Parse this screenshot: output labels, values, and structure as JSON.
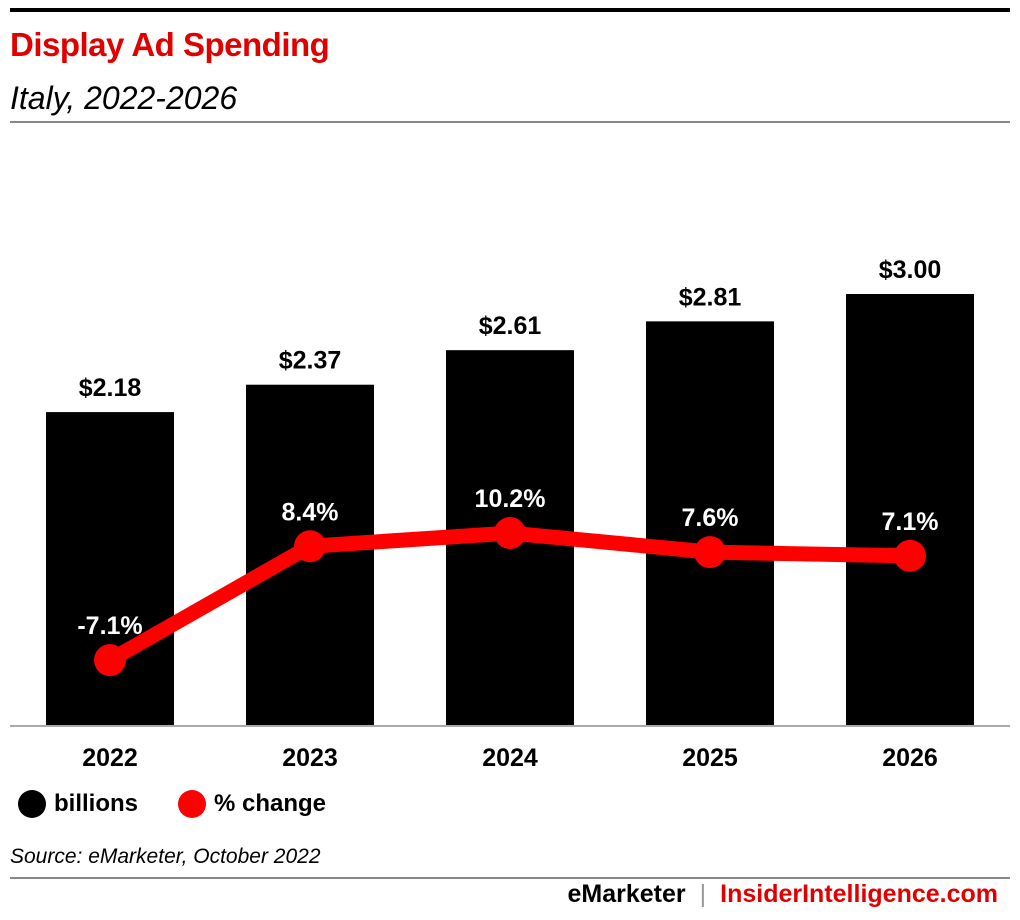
{
  "header": {
    "title": "Display Ad Spending",
    "subtitle": "Italy, 2022-2026"
  },
  "legend": {
    "bars_label": "billions",
    "line_label": "% change"
  },
  "source": "Source: eMarketer, October 2022",
  "footer": {
    "brand_left": "eMarketer",
    "separator": "|",
    "brand_right": "InsiderIntelligence.com"
  },
  "colors": {
    "title": "#e00000",
    "bars": "#000000",
    "line": "#ff0000",
    "footer_right": "#e00000"
  },
  "chart_data": {
    "type": "bar",
    "categories": [
      "2022",
      "2023",
      "2024",
      "2025",
      "2026"
    ],
    "series": [
      {
        "name": "billions",
        "values": [
          2.18,
          2.37,
          2.61,
          2.81,
          3.0
        ],
        "labels": [
          "$2.18",
          "$2.37",
          "$2.61",
          "$2.81",
          "$3.00"
        ]
      },
      {
        "name": "% change",
        "type": "line",
        "values": [
          -7.1,
          8.4,
          10.2,
          7.6,
          7.1
        ],
        "labels": [
          "-7.1%",
          "8.4%",
          "10.2%",
          "7.6%",
          "7.1%"
        ]
      }
    ]
  }
}
